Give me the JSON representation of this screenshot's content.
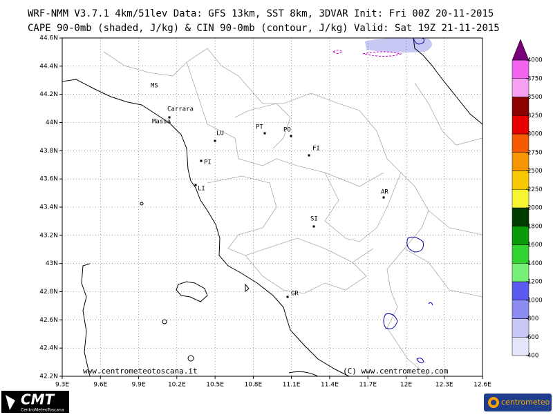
{
  "header": {
    "line1": "WRF-NMM V3.7.1 4km/51lev  Data: GFS 13km, SST 8km, 3DVAR  Init: Fri 00Z 20-11-2015",
    "line2": "CAPE 90-0mb (shaded, J/kg) & CIN 90-0mb (contour, J/kg)  Valid: Sat 19Z 21-11-2015"
  },
  "map": {
    "lat_range": [
      42.2,
      44.6
    ],
    "lon_range": [
      9.3,
      12.6
    ],
    "lat_ticks": [
      {
        "value": 44.6,
        "label": "44.6N"
      },
      {
        "value": 44.4,
        "label": "44.4N"
      },
      {
        "value": 44.2,
        "label": "44.2N"
      },
      {
        "value": 44,
        "label": "44N"
      },
      {
        "value": 43.8,
        "label": "43.8N"
      },
      {
        "value": 43.6,
        "label": "43.6N"
      },
      {
        "value": 43.4,
        "label": "43.4N"
      },
      {
        "value": 43.2,
        "label": "43.2N"
      },
      {
        "value": 43,
        "label": "43N"
      },
      {
        "value": 42.8,
        "label": "42.8N"
      },
      {
        "value": 42.6,
        "label": "42.6N"
      },
      {
        "value": 42.4,
        "label": "42.4N"
      },
      {
        "value": 42.2,
        "label": "42.2N"
      }
    ],
    "lon_ticks": [
      {
        "value": 9.3,
        "label": "9.3E"
      },
      {
        "value": 9.6,
        "label": "9.6E"
      },
      {
        "value": 9.9,
        "label": "9.9E"
      },
      {
        "value": 10.2,
        "label": "10.2E"
      },
      {
        "value": 10.5,
        "label": "10.5E"
      },
      {
        "value": 10.8,
        "label": "10.8E"
      },
      {
        "value": 11.1,
        "label": "11.1E"
      },
      {
        "value": 11.4,
        "label": "11.4E"
      },
      {
        "value": 11.7,
        "label": "11.7E"
      },
      {
        "value": 12,
        "label": "12E"
      },
      {
        "value": 12.3,
        "label": "12.3E"
      },
      {
        "value": 12.6,
        "label": "12.6E"
      }
    ],
    "places": [
      "MS",
      "Carrara",
      "Massa",
      "LU",
      "PT",
      "PO",
      "FI",
      "PI",
      "LI",
      "SI",
      "AR",
      "GR"
    ],
    "credit_left": "www.centrometeotoscana.it",
    "credit_right": "(C) www.centrometeo.com"
  },
  "colorbar": {
    "levels": [
      400,
      600,
      800,
      1000,
      1200,
      1400,
      1600,
      1800,
      2000,
      2250,
      2500,
      2750,
      3000,
      3250,
      3500,
      3750,
      4000
    ],
    "colors": [
      "#e6e6fa",
      "#c8c8f5",
      "#8c8cf0",
      "#5a5af0",
      "#78f078",
      "#32d232",
      "#0a9a0a",
      "#003c00",
      "#f5f532",
      "#f5c800",
      "#f59600",
      "#f55a00",
      "#e60000",
      "#8c0000",
      "#f5a0f0",
      "#f064f0",
      "#d21ed2",
      "#780078"
    ]
  },
  "logos": {
    "cmt": "CMT",
    "cmt_sub": "CentroMeteoToscana",
    "centrometeo": "centrometeo"
  }
}
